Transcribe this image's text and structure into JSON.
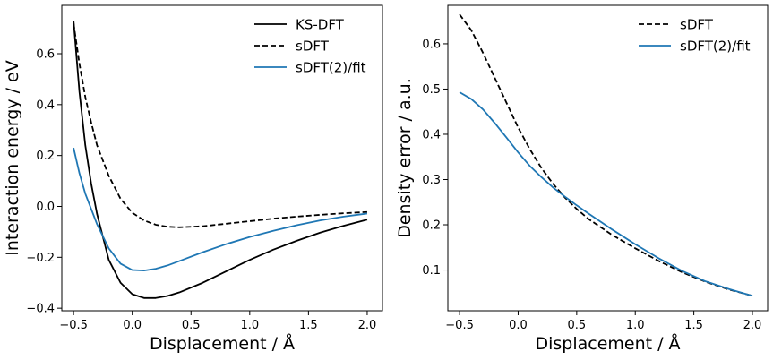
{
  "chart_data": [
    {
      "type": "line",
      "title": "",
      "xlabel": "Displacement / Å",
      "ylabel": "Interaction energy / eV",
      "xlim": [
        -0.6,
        2.13
      ],
      "ylim": [
        -0.41,
        0.79
      ],
      "xticks": [
        -0.5,
        0.0,
        0.5,
        1.0,
        1.5,
        2.0
      ],
      "xtick_labels": [
        "−0.5",
        "0.0",
        "0.5",
        "1.0",
        "1.5",
        "2.0"
      ],
      "yticks": [
        -0.4,
        -0.2,
        0.0,
        0.2,
        0.4,
        0.6
      ],
      "ytick_labels": [
        "−0.4",
        "−0.2",
        "0.0",
        "0.2",
        "0.4",
        "0.6"
      ],
      "grid": false,
      "legend_position": "top-right",
      "series": [
        {
          "name": "KS-DFT",
          "color": "#000000",
          "style": "solid",
          "x": [
            -0.5,
            -0.45,
            -0.4,
            -0.35,
            -0.3,
            -0.2,
            -0.1,
            0.0,
            0.1,
            0.2,
            0.3,
            0.4,
            0.6,
            0.8,
            1.0,
            1.2,
            1.4,
            1.6,
            1.8,
            2.0
          ],
          "y": [
            0.73,
            0.45,
            0.24,
            0.09,
            -0.03,
            -0.21,
            -0.3,
            -0.345,
            -0.36,
            -0.36,
            -0.352,
            -0.338,
            -0.3,
            -0.255,
            -0.21,
            -0.17,
            -0.135,
            -0.103,
            -0.076,
            -0.052
          ]
        },
        {
          "name": "sDFT",
          "color": "#000000",
          "style": "dashed",
          "x": [
            -0.5,
            -0.45,
            -0.4,
            -0.35,
            -0.3,
            -0.2,
            -0.1,
            0.0,
            0.1,
            0.2,
            0.3,
            0.4,
            0.6,
            0.8,
            1.0,
            1.2,
            1.4,
            1.6,
            1.8,
            2.0
          ],
          "y": [
            0.72,
            0.56,
            0.43,
            0.33,
            0.24,
            0.12,
            0.03,
            -0.025,
            -0.055,
            -0.072,
            -0.08,
            -0.082,
            -0.078,
            -0.068,
            -0.058,
            -0.048,
            -0.04,
            -0.033,
            -0.027,
            -0.022
          ]
        },
        {
          "name": "sDFT(2)/fit",
          "color": "#1f77b4",
          "style": "solid",
          "x": [
            -0.5,
            -0.45,
            -0.4,
            -0.35,
            -0.3,
            -0.2,
            -0.1,
            0.0,
            0.1,
            0.2,
            0.3,
            0.4,
            0.6,
            0.8,
            1.0,
            1.2,
            1.4,
            1.6,
            1.8,
            2.0
          ],
          "y": [
            0.23,
            0.13,
            0.05,
            -0.01,
            -0.07,
            -0.165,
            -0.225,
            -0.25,
            -0.252,
            -0.245,
            -0.232,
            -0.215,
            -0.18,
            -0.148,
            -0.12,
            -0.096,
            -0.074,
            -0.055,
            -0.04,
            -0.028
          ]
        }
      ]
    },
    {
      "type": "line",
      "title": "",
      "xlabel": "Displacement / Å",
      "ylabel": "Density error / a.u.",
      "xlim": [
        -0.6,
        2.13
      ],
      "ylim": [
        0.01,
        0.685
      ],
      "xticks": [
        -0.5,
        0.0,
        0.5,
        1.0,
        1.5,
        2.0
      ],
      "xtick_labels": [
        "−0.5",
        "0.0",
        "0.5",
        "1.0",
        "1.5",
        "2.0"
      ],
      "yticks": [
        0.1,
        0.2,
        0.3,
        0.4,
        0.5,
        0.6
      ],
      "ytick_labels": [
        "0.1",
        "0.2",
        "0.3",
        "0.4",
        "0.5",
        "0.6"
      ],
      "grid": false,
      "legend_position": "top-right",
      "series": [
        {
          "name": "sDFT",
          "color": "#000000",
          "style": "dashed",
          "x": [
            -0.5,
            -0.4,
            -0.3,
            -0.2,
            -0.1,
            0.0,
            0.1,
            0.2,
            0.3,
            0.4,
            0.5,
            0.6,
            0.8,
            1.0,
            1.2,
            1.4,
            1.6,
            1.8,
            2.0
          ],
          "y": [
            0.665,
            0.63,
            0.58,
            0.525,
            0.47,
            0.415,
            0.367,
            0.325,
            0.29,
            0.26,
            0.235,
            0.213,
            0.178,
            0.148,
            0.12,
            0.095,
            0.074,
            0.057,
            0.043
          ]
        },
        {
          "name": "sDFT(2)/fit",
          "color": "#1f77b4",
          "style": "solid",
          "x": [
            -0.5,
            -0.4,
            -0.3,
            -0.2,
            -0.1,
            0.0,
            0.1,
            0.2,
            0.3,
            0.4,
            0.5,
            0.6,
            0.8,
            1.0,
            1.2,
            1.4,
            1.6,
            1.8,
            2.0
          ],
          "y": [
            0.493,
            0.478,
            0.455,
            0.425,
            0.393,
            0.36,
            0.33,
            0.305,
            0.282,
            0.262,
            0.243,
            0.225,
            0.19,
            0.157,
            0.126,
            0.098,
            0.075,
            0.058,
            0.043
          ]
        }
      ]
    }
  ]
}
